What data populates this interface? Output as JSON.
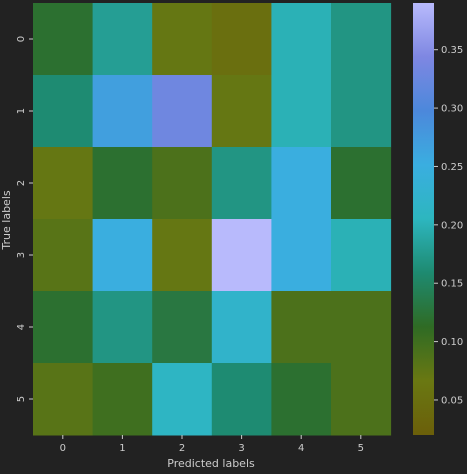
{
  "chart_data": {
    "type": "heatmap",
    "title": "",
    "xlabel": "Predicted labels",
    "ylabel": "True labels",
    "x_categories": [
      "0",
      "1",
      "2",
      "3",
      "4",
      "5"
    ],
    "y_categories": [
      "0",
      "1",
      "2",
      "3",
      "4",
      "5"
    ],
    "values": [
      [
        0.12,
        0.18,
        0.07,
        0.05,
        0.2,
        0.17
      ],
      [
        0.16,
        0.27,
        0.33,
        0.07,
        0.2,
        0.17
      ],
      [
        0.07,
        0.12,
        0.09,
        0.17,
        0.25,
        0.12
      ],
      [
        0.08,
        0.25,
        0.07,
        0.39,
        0.25,
        0.2
      ],
      [
        0.12,
        0.17,
        0.13,
        0.22,
        0.09,
        0.09
      ],
      [
        0.08,
        0.1,
        0.21,
        0.16,
        0.12,
        0.09
      ]
    ],
    "colorbar": {
      "vmin": 0.02,
      "vmax": 0.39,
      "ticks": [
        "0.05",
        "0.10",
        "0.15",
        "0.20",
        "0.25",
        "0.30",
        "0.35"
      ],
      "colors": [
        "#6b5f0a",
        "#6a7812",
        "#2f6b24",
        "#1e8a70",
        "#2db6bf",
        "#3aaee0",
        "#4c88db",
        "#7e87e2",
        "#b8bafc"
      ]
    },
    "background": "#222222",
    "text_color": "#cccccc"
  }
}
